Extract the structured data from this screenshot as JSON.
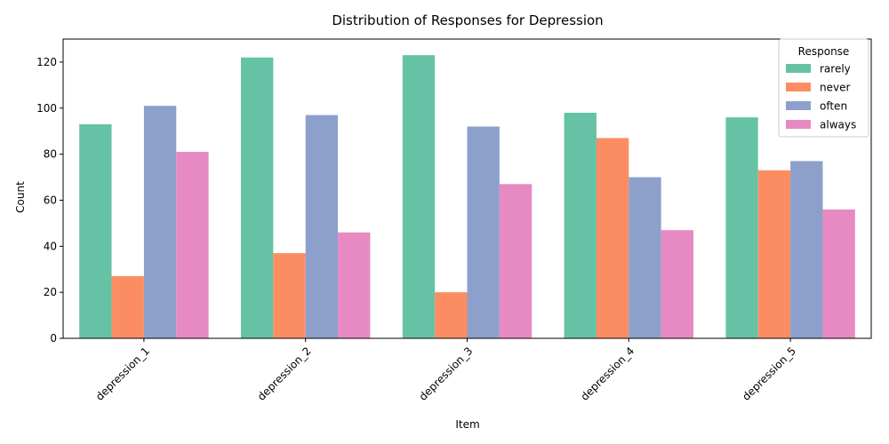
{
  "chart_data": {
    "type": "bar",
    "title": "Distribution of Responses for Depression",
    "xlabel": "Item",
    "ylabel": "Count",
    "ylim": [
      0,
      130
    ],
    "yticks": [
      0,
      20,
      40,
      60,
      80,
      100,
      120
    ],
    "categories": [
      "depression_1",
      "depression_2",
      "depression_3",
      "depression_4",
      "depression_5"
    ],
    "series": [
      {
        "name": "rarely",
        "color": "#66c2a5",
        "values": [
          93,
          122,
          123,
          98,
          96
        ]
      },
      {
        "name": "never",
        "color": "#fc8d62",
        "values": [
          27,
          37,
          20,
          87,
          73
        ]
      },
      {
        "name": "often",
        "color": "#8da0cb",
        "values": [
          101,
          97,
          92,
          70,
          77
        ]
      },
      {
        "name": "always",
        "color": "#e78ac3",
        "values": [
          81,
          46,
          67,
          47,
          56
        ]
      }
    ],
    "legend": {
      "title": "Response",
      "position": "top-right"
    },
    "grid": false
  }
}
